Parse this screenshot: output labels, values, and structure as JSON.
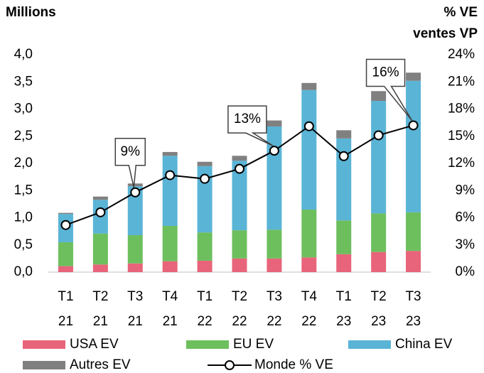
{
  "chart_data": {
    "type": "stacked-bar-line",
    "y_label": "Millions",
    "y2_label": [
      "% VE",
      "ventes VP"
    ],
    "categories": [
      [
        "T1",
        "21"
      ],
      [
        "T2",
        "21"
      ],
      [
        "T3",
        "21"
      ],
      [
        "T4",
        "21"
      ],
      [
        "T1",
        "22"
      ],
      [
        "T2",
        "22"
      ],
      [
        "T3",
        "22"
      ],
      [
        "T4",
        "22"
      ],
      [
        "T1",
        "23"
      ],
      [
        "T2",
        "23"
      ],
      [
        "T3",
        "23"
      ]
    ],
    "series": [
      {
        "name": "USA EV",
        "color": "#e8647a",
        "values": [
          0.11,
          0.14,
          0.16,
          0.2,
          0.21,
          0.25,
          0.25,
          0.27,
          0.33,
          0.37,
          0.39
        ]
      },
      {
        "name": "EU EV",
        "color": "#6dbf5e",
        "values": [
          0.44,
          0.57,
          0.52,
          0.65,
          0.52,
          0.52,
          0.53,
          0.88,
          0.62,
          0.71,
          0.71
        ]
      },
      {
        "name": "China EV",
        "color": "#5ab4d6",
        "values": [
          0.52,
          0.62,
          0.9,
          1.29,
          1.22,
          1.28,
          1.9,
          2.2,
          1.51,
          2.07,
          2.42
        ]
      },
      {
        "name": "Autres EV",
        "color": "#808080",
        "values": [
          0.02,
          0.06,
          0.05,
          0.07,
          0.08,
          0.09,
          0.11,
          0.13,
          0.15,
          0.18,
          0.15
        ]
      },
      {
        "name": "Monde % VE",
        "color": "#000000",
        "axis": "y2",
        "type": "line",
        "values": [
          5.2,
          6.6,
          8.8,
          10.7,
          10.3,
          11.4,
          13.4,
          16.1,
          12.8,
          15.1,
          16.2
        ],
        "value_labels": [
          null,
          null,
          "9%",
          null,
          null,
          null,
          "13%",
          null,
          null,
          null,
          "16%"
        ]
      }
    ],
    "ylim": [
      0,
      4
    ],
    "yticks": [
      {
        "value": 0,
        "label": "0,0"
      },
      {
        "value": 0.5,
        "label": "0,5"
      },
      {
        "value": 1,
        "label": "1,0"
      },
      {
        "value": 1.5,
        "label": "1,5"
      },
      {
        "value": 2,
        "label": "2,0"
      },
      {
        "value": 2.5,
        "label": "2,5"
      },
      {
        "value": 3,
        "label": "3,0"
      },
      {
        "value": 3.5,
        "label": "3,5"
      },
      {
        "value": 4,
        "label": "4,0"
      }
    ],
    "y2lim": [
      0,
      24
    ],
    "y2ticks": [
      {
        "value": 0,
        "label": "0%"
      },
      {
        "value": 3,
        "label": "3%"
      },
      {
        "value": 6,
        "label": "6%"
      },
      {
        "value": 9,
        "label": "9%"
      },
      {
        "value": 12,
        "label": "12%"
      },
      {
        "value": 15,
        "label": "15%"
      },
      {
        "value": 18,
        "label": "18%"
      },
      {
        "value": 21,
        "label": "21%"
      },
      {
        "value": 24,
        "label": "24%"
      }
    ],
    "grid": false,
    "legend": "bottom"
  }
}
